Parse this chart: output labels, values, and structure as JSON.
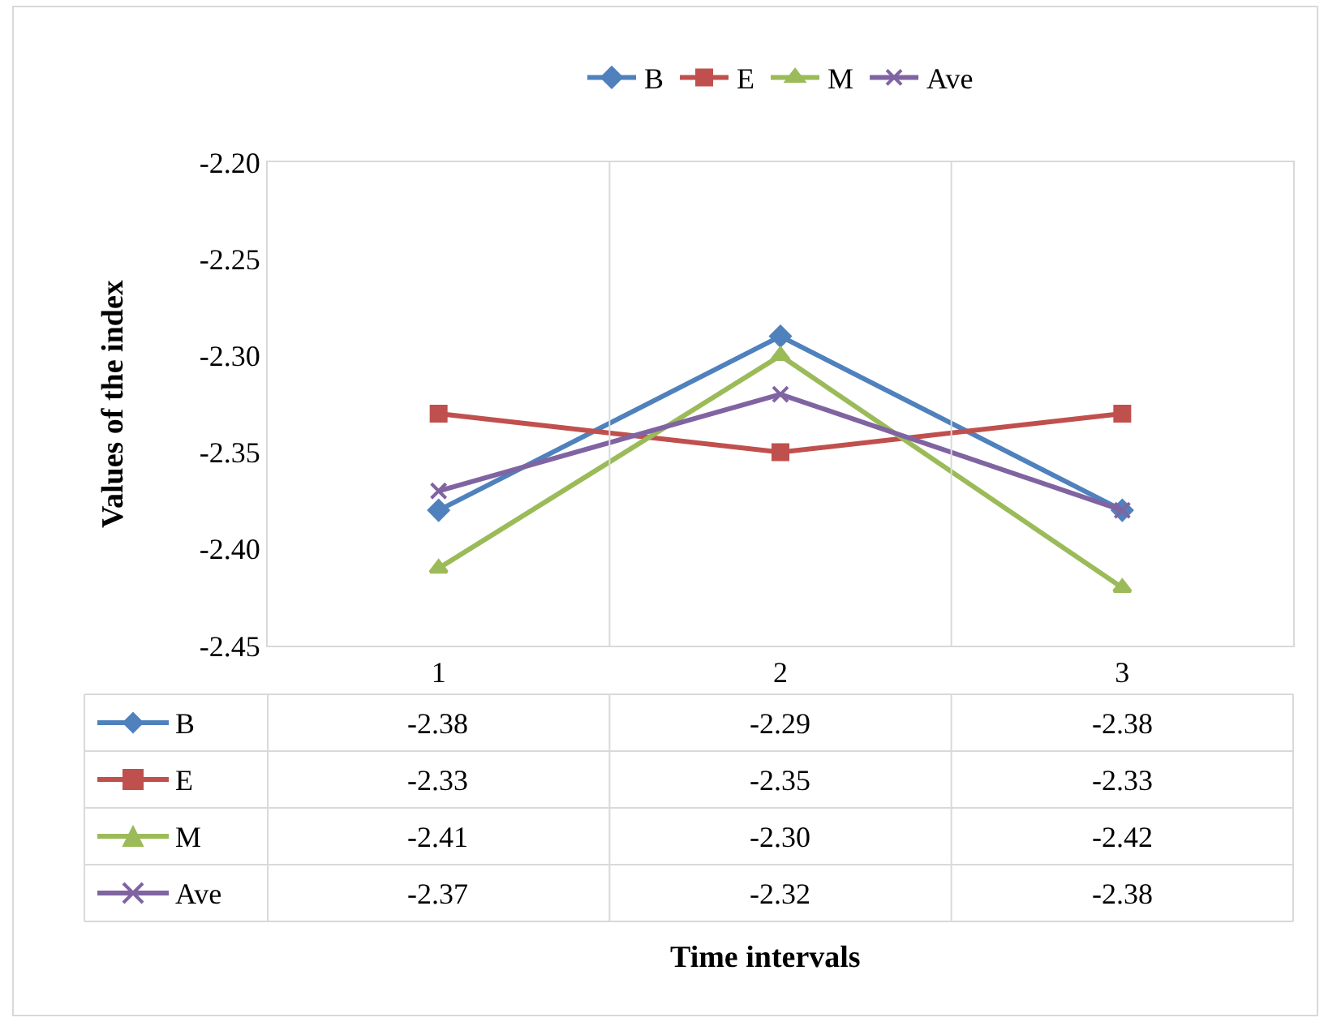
{
  "chart_data": {
    "type": "line",
    "categories": [
      "1",
      "2",
      "3"
    ],
    "annotations": [
      "Time intervals"
    ],
    "ylabel": "Values of the index",
    "ylim": [
      -2.45,
      -2.2
    ],
    "yticks": [
      {
        "value": -2.45,
        "label": "-2.45"
      },
      {
        "value": -2.4,
        "label": "-2.40"
      },
      {
        "value": -2.35,
        "label": "-2.35"
      },
      {
        "value": -2.3,
        "label": "-2.30"
      },
      {
        "value": -2.25,
        "label": "-2.25"
      },
      {
        "value": -2.2,
        "label": "-2.20"
      }
    ],
    "series": [
      {
        "name": "B",
        "color": "#4f81bd",
        "marker": "diamond",
        "values": [
          -2.38,
          -2.29,
          -2.38
        ],
        "value_labels": [
          "-2.38",
          "-2.29",
          "-2.38"
        ]
      },
      {
        "name": "E",
        "color": "#c0504d",
        "marker": "square",
        "values": [
          -2.33,
          -2.35,
          -2.33
        ],
        "value_labels": [
          "-2.33",
          "-2.35",
          "-2.33"
        ]
      },
      {
        "name": "M",
        "color": "#9bbb59",
        "marker": "triangle",
        "values": [
          -2.41,
          -2.3,
          -2.42
        ],
        "value_labels": [
          "-2.41",
          "-2.30",
          "-2.42"
        ]
      },
      {
        "name": "Ave",
        "color": "#8064a2",
        "marker": "cross",
        "values": [
          -2.37,
          -2.32,
          -2.38
        ],
        "value_labels": [
          "-2.37",
          "-2.32",
          "-2.38"
        ]
      }
    ],
    "grid": "x",
    "legend": "top",
    "line_style": "solid"
  }
}
